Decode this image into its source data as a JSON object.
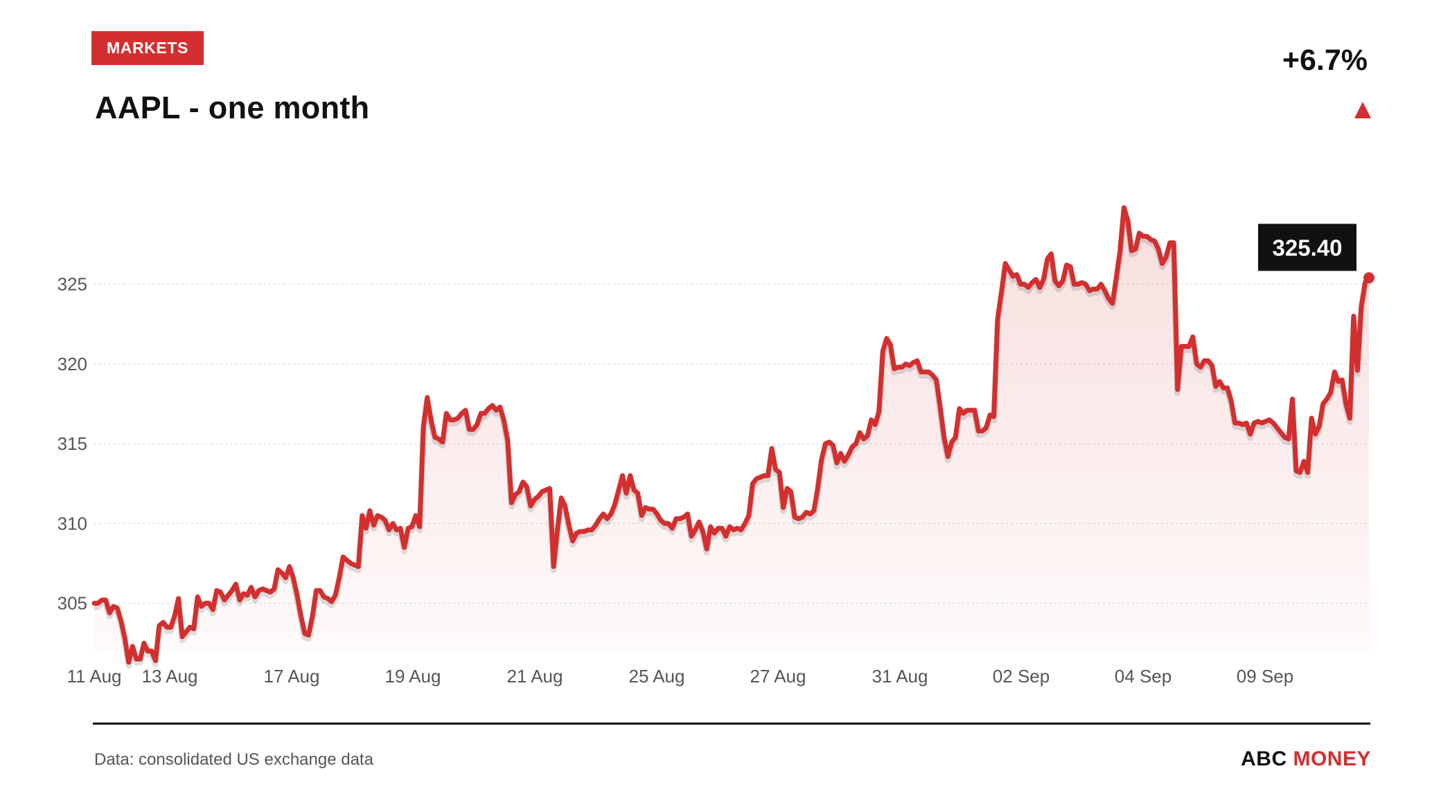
{
  "header": {
    "badge": "MARKETS",
    "title": "AAPL - one month",
    "change": "+6.7%"
  },
  "footer": {
    "source": "Data: consolidated US exchange data",
    "brand_part1": "ABC",
    "brand_part2": "MONEY"
  },
  "colors": {
    "accent": "#d32f2f",
    "text": "#111111",
    "muted": "#555555"
  },
  "chart_data": {
    "type": "area",
    "ylim": [
      301.6,
      329.8
    ],
    "yticks": [
      305,
      310,
      315,
      320,
      325
    ],
    "x_tick_labels": [
      "11 Aug",
      "13 Aug",
      "17 Aug",
      "19 Aug",
      "21 Aug",
      "25 Aug",
      "27 Aug",
      "31 Aug",
      "02 Sep",
      "04 Sep",
      "09 Sep"
    ],
    "grid": true,
    "last_value_label": "325.40",
    "series": [
      {
        "values": [
          305.0,
          305.0,
          305.2,
          305.2,
          304.4,
          304.8,
          304.7,
          303.9,
          302.8,
          301.3,
          302.3,
          301.5,
          301.5,
          302.5,
          302.0,
          302.0,
          301.4,
          303.6,
          303.8,
          303.5,
          303.5,
          304.2,
          305.3,
          302.9,
          303.2,
          303.5,
          303.4,
          305.4,
          304.8,
          305.0,
          305.0,
          304.6,
          305.8,
          305.7,
          305.2,
          305.5,
          305.8,
          306.2,
          305.2,
          305.6,
          305.5,
          306.0,
          305.4,
          305.8,
          305.9,
          305.8,
          305.7,
          305.9,
          307.1,
          306.9,
          306.6,
          307.3,
          306.6,
          305.5,
          304.2,
          303.1,
          303.0,
          304.2,
          305.8,
          305.8,
          305.4,
          305.3,
          305.1,
          305.5,
          306.6,
          307.9,
          307.7,
          307.5,
          307.4,
          307.3,
          310.5,
          309.7,
          310.8,
          309.9,
          310.5,
          310.4,
          310.2,
          309.6,
          310.0,
          309.6,
          309.7,
          308.5,
          309.7,
          309.8,
          310.5,
          309.8,
          316.1,
          317.9,
          316.5,
          315.4,
          315.3,
          315.1,
          316.9,
          316.5,
          316.5,
          316.6,
          316.9,
          317.1,
          315.9,
          315.9,
          316.2,
          316.9,
          316.9,
          317.2,
          317.4,
          317.1,
          317.3,
          316.5,
          315.2,
          311.3,
          311.8,
          312.0,
          312.6,
          312.3,
          311.1,
          311.5,
          311.7,
          312.0,
          312.1,
          312.2,
          307.3,
          309.6,
          311.6,
          311.1,
          309.9,
          308.9,
          309.4,
          309.5,
          309.5,
          309.6,
          309.6,
          309.9,
          310.3,
          310.6,
          310.3,
          310.6,
          311.2,
          312.1,
          313.0,
          311.9,
          313.0,
          312.1,
          311.9,
          310.5,
          311.0,
          310.9,
          310.9,
          310.6,
          310.2,
          310.0,
          310.0,
          309.7,
          310.3,
          310.3,
          310.4,
          310.6,
          309.2,
          309.6,
          310.1,
          309.5,
          308.4,
          309.8,
          309.4,
          309.7,
          309.7,
          309.2,
          309.8,
          309.6,
          309.7,
          309.6,
          310.0,
          310.5,
          312.5,
          312.8,
          312.9,
          313.0,
          313.0,
          314.7,
          313.4,
          313.2,
          311.0,
          312.2,
          312.0,
          310.4,
          310.3,
          310.4,
          310.7,
          310.6,
          310.8,
          312.2,
          314.0,
          315.0,
          315.1,
          314.9,
          313.8,
          314.4,
          313.9,
          314.3,
          314.8,
          315.0,
          315.7,
          315.3,
          315.5,
          316.5,
          316.2,
          317.0,
          320.8,
          321.6,
          321.2,
          319.7,
          319.8,
          319.8,
          320.0,
          319.9,
          320.1,
          320.2,
          319.5,
          319.5,
          319.5,
          319.3,
          319.0,
          317.3,
          315.4,
          314.2,
          315.1,
          315.4,
          317.2,
          316.9,
          317.1,
          317.1,
          317.1,
          315.8,
          315.8,
          316.0,
          316.8,
          316.7,
          322.8,
          324.5,
          326.3,
          325.9,
          325.5,
          325.6,
          325.0,
          325.0,
          324.8,
          325.1,
          325.3,
          324.8,
          325.3,
          326.6,
          326.9,
          325.2,
          324.9,
          325.2,
          326.2,
          326.1,
          325.0,
          325.0,
          325.1,
          325.0,
          324.6,
          324.7,
          324.7,
          325.0,
          324.6,
          324.1,
          323.8,
          325.4,
          327.1,
          329.8,
          329.0,
          327.1,
          327.2,
          328.2,
          328.0,
          328.0,
          327.8,
          327.7,
          327.2,
          326.3,
          326.7,
          327.6,
          327.6,
          318.4,
          321.1,
          321.1,
          321.1,
          321.7,
          320.0,
          319.8,
          320.2,
          320.2,
          319.9,
          318.6,
          318.9,
          318.5,
          318.5,
          317.7,
          316.3,
          316.3,
          316.2,
          316.3,
          315.6,
          316.3,
          316.4,
          316.3,
          316.4,
          316.5,
          316.3,
          316.0,
          315.7,
          315.4,
          315.3,
          317.8,
          313.3,
          313.2,
          313.9,
          313.2,
          316.6,
          315.6,
          316.1,
          317.5,
          317.8,
          318.2,
          319.5,
          318.9,
          319.0,
          317.5,
          316.6,
          323.0,
          319.6,
          323.6,
          325.1,
          325.4
        ]
      }
    ]
  }
}
